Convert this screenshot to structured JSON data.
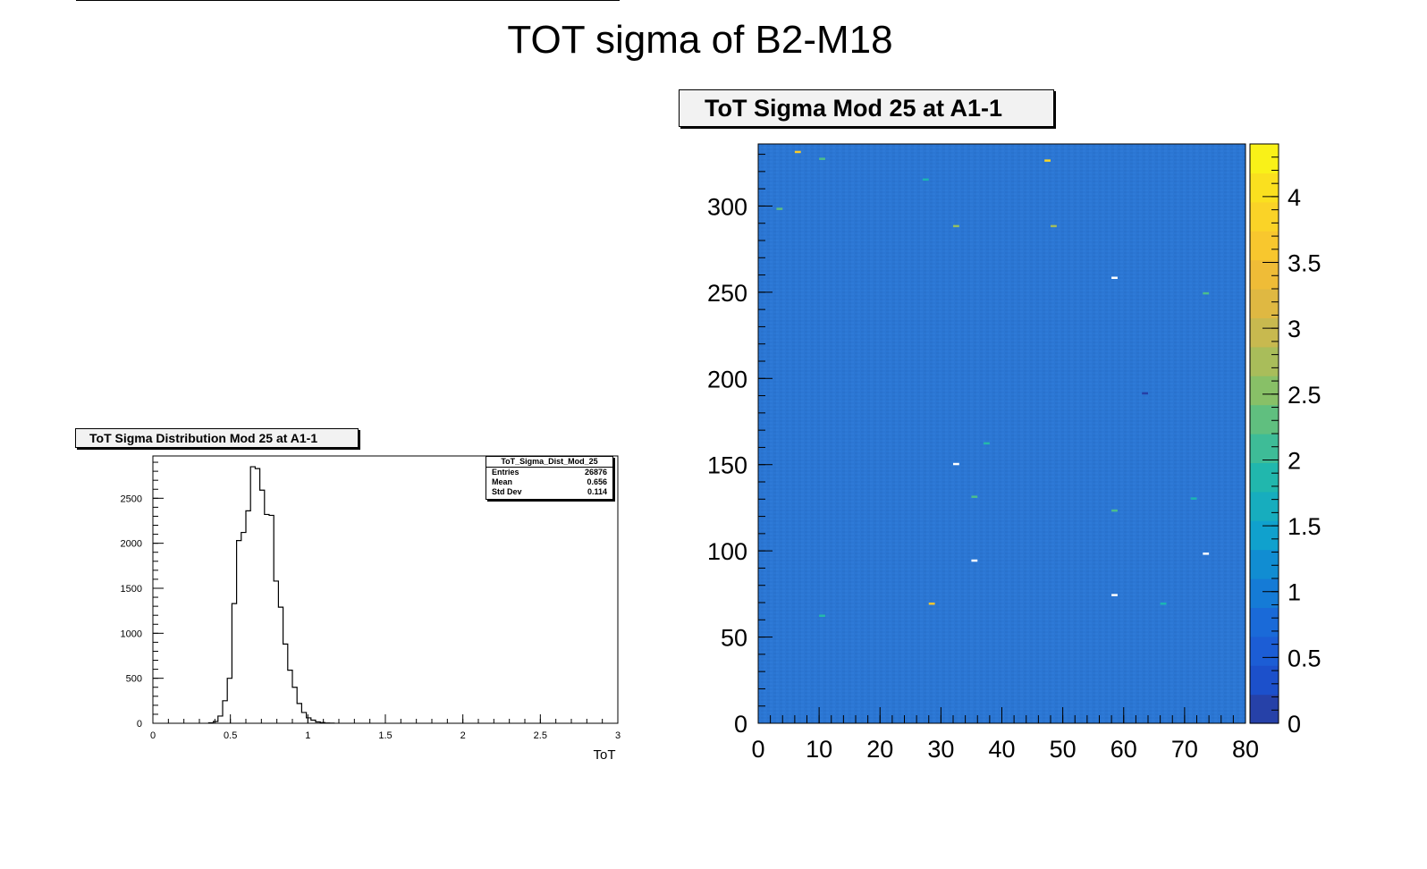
{
  "page_title": "TOT sigma of B2-M18",
  "left_panel": {
    "title": "ToT Sigma Distribution Mod 25 at A1-1"
  },
  "right_panel": {
    "title": "ToT Sigma Mod 25 at A1-1"
  },
  "stats": {
    "name": "ToT_Sigma_Dist_Mod_25",
    "rows": [
      {
        "label": "Entries",
        "value": "26876"
      },
      {
        "label": "Mean",
        "value": "0.656"
      },
      {
        "label": "Std Dev",
        "value": "0.114"
      }
    ]
  },
  "colors": {
    "heatmap_base": "#2b76d3",
    "line": "#000000"
  },
  "chart_data": [
    {
      "type": "bar",
      "style": "step-histogram",
      "title": "ToT Sigma Distribution Mod 25 at A1-1",
      "xlabel": "ToT",
      "ylabel": "",
      "xlim": [
        0,
        3
      ],
      "ylim": [
        0,
        2970
      ],
      "x_ticks": [
        "0",
        "0.5",
        "1",
        "1.5",
        "2",
        "2.5",
        "3"
      ],
      "y_ticks": [
        "0",
        "500",
        "1000",
        "1500",
        "2000",
        "2500"
      ],
      "bin_width": 0.03,
      "bin_start": 0.36,
      "values": [
        5,
        20,
        80,
        250,
        500,
        1330,
        2030,
        2120,
        2360,
        2850,
        2830,
        2590,
        2320,
        2310,
        1580,
        1290,
        880,
        590,
        400,
        220,
        120,
        60,
        35,
        15,
        8,
        3,
        1
      ],
      "grid": false,
      "legend": "stats box top-right"
    },
    {
      "type": "heatmap",
      "title": "ToT Sigma Mod 25 at A1-1",
      "xlabel": "",
      "ylabel": "",
      "xlim": [
        0,
        80
      ],
      "ylim": [
        0,
        336
      ],
      "x_ticks": [
        "0",
        "10",
        "20",
        "30",
        "40",
        "50",
        "60",
        "70",
        "80"
      ],
      "y_ticks": [
        "0",
        "50",
        "100",
        "150",
        "200",
        "250",
        "300"
      ],
      "z_range": [
        0,
        4.4
      ],
      "z_ticks": [
        "0",
        "0.5",
        "1",
        "1.5",
        "2",
        "2.5",
        "3",
        "3.5",
        "4"
      ],
      "typical_value": 0.65,
      "outliers": [
        {
          "x": 6,
          "y": 331,
          "z": 3.7
        },
        {
          "x": 10,
          "y": 327,
          "z": 2.2
        },
        {
          "x": 47,
          "y": 326,
          "z": 3.9
        },
        {
          "x": 27,
          "y": 315,
          "z": 1.8
        },
        {
          "x": 3,
          "y": 298,
          "z": 2.3
        },
        {
          "x": 32,
          "y": 288,
          "z": 2.6
        },
        {
          "x": 48,
          "y": 288,
          "z": 2.7
        },
        {
          "x": 58,
          "y": 258,
          "z": 4.4
        },
        {
          "x": 73,
          "y": 249,
          "z": 2.2
        },
        {
          "x": 63,
          "y": 191,
          "z": 0.1
        },
        {
          "x": 37,
          "y": 162,
          "z": 1.9
        },
        {
          "x": 32,
          "y": 150,
          "z": 4.4
        },
        {
          "x": 35,
          "y": 131,
          "z": 2.2
        },
        {
          "x": 71,
          "y": 130,
          "z": 1.8
        },
        {
          "x": 58,
          "y": 123,
          "z": 2.2
        },
        {
          "x": 73,
          "y": 98,
          "z": 4.4
        },
        {
          "x": 35,
          "y": 94,
          "z": 4.4
        },
        {
          "x": 58,
          "y": 74,
          "z": 4.4
        },
        {
          "x": 28,
          "y": 69,
          "z": 3.6
        },
        {
          "x": 66,
          "y": 69,
          "z": 1.8
        },
        {
          "x": 10,
          "y": 62,
          "z": 1.9
        }
      ],
      "grid": false,
      "legend": "color scale right"
    }
  ]
}
